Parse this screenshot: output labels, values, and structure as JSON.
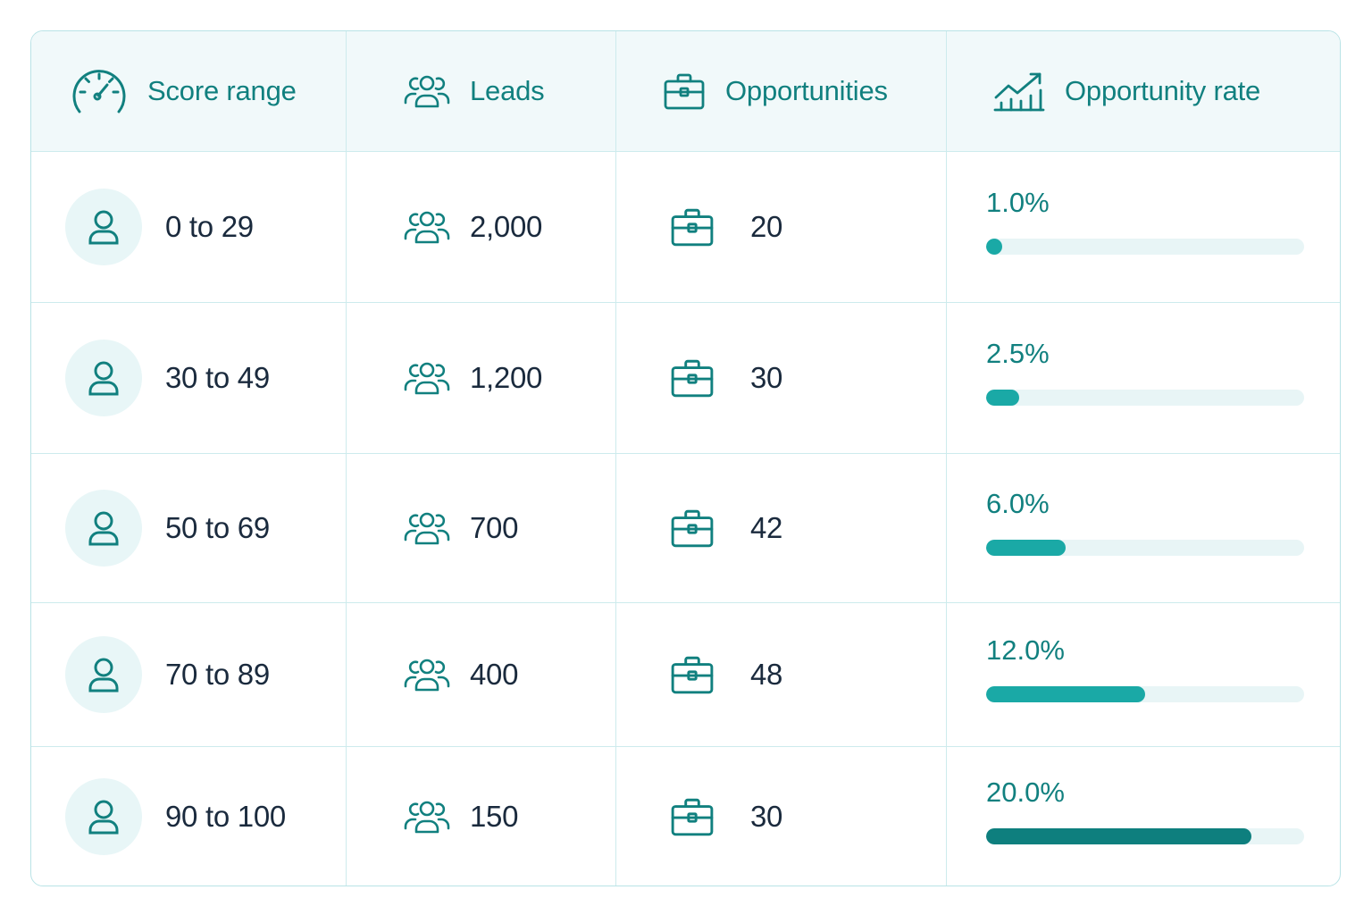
{
  "colors": {
    "accent": "#11807f",
    "bar_light": "#1aa9a6",
    "bar_dark": "#0e7f7e",
    "track": "#e8f5f6",
    "text": "#1a2a3d"
  },
  "header": {
    "score_range": "Score range",
    "leads": "Leads",
    "opportunities": "Opportunities",
    "opportunity_rate": "Opportunity rate",
    "icons": [
      "speedometer-icon",
      "people-icon",
      "briefcase-icon",
      "trend-chart-icon"
    ]
  },
  "rows": [
    {
      "score_range": "0 to 29",
      "leads": "2,000",
      "opportunities": "20",
      "rate_label": "1.0%",
      "rate": 1.0
    },
    {
      "score_range": "30 to 49",
      "leads": "1,200",
      "opportunities": "30",
      "rate_label": "2.5%",
      "rate": 2.5
    },
    {
      "score_range": "50 to 69",
      "leads": "700",
      "opportunities": "42",
      "rate_label": "6.0%",
      "rate": 6.0
    },
    {
      "score_range": "70 to 89",
      "leads": "400",
      "opportunities": "48",
      "rate_label": "12.0%",
      "rate": 12.0
    },
    {
      "score_range": "90 to 100",
      "leads": "150",
      "opportunities": "30",
      "rate_label": "20.0%",
      "rate": 20.0
    }
  ],
  "chart_data": {
    "type": "table",
    "columns": [
      "Score range",
      "Leads",
      "Opportunities",
      "Opportunity rate"
    ],
    "categories": [
      "0 to 29",
      "30 to 49",
      "50 to 69",
      "70 to 89",
      "90 to 100"
    ],
    "series": [
      {
        "name": "Leads",
        "values": [
          2000,
          1200,
          700,
          400,
          150
        ]
      },
      {
        "name": "Opportunities",
        "values": [
          20,
          30,
          42,
          48,
          30
        ]
      },
      {
        "name": "Opportunity rate",
        "values": [
          1.0,
          2.5,
          6.0,
          12.0,
          20.0
        ]
      }
    ],
    "bar_scale_max": 24
  }
}
